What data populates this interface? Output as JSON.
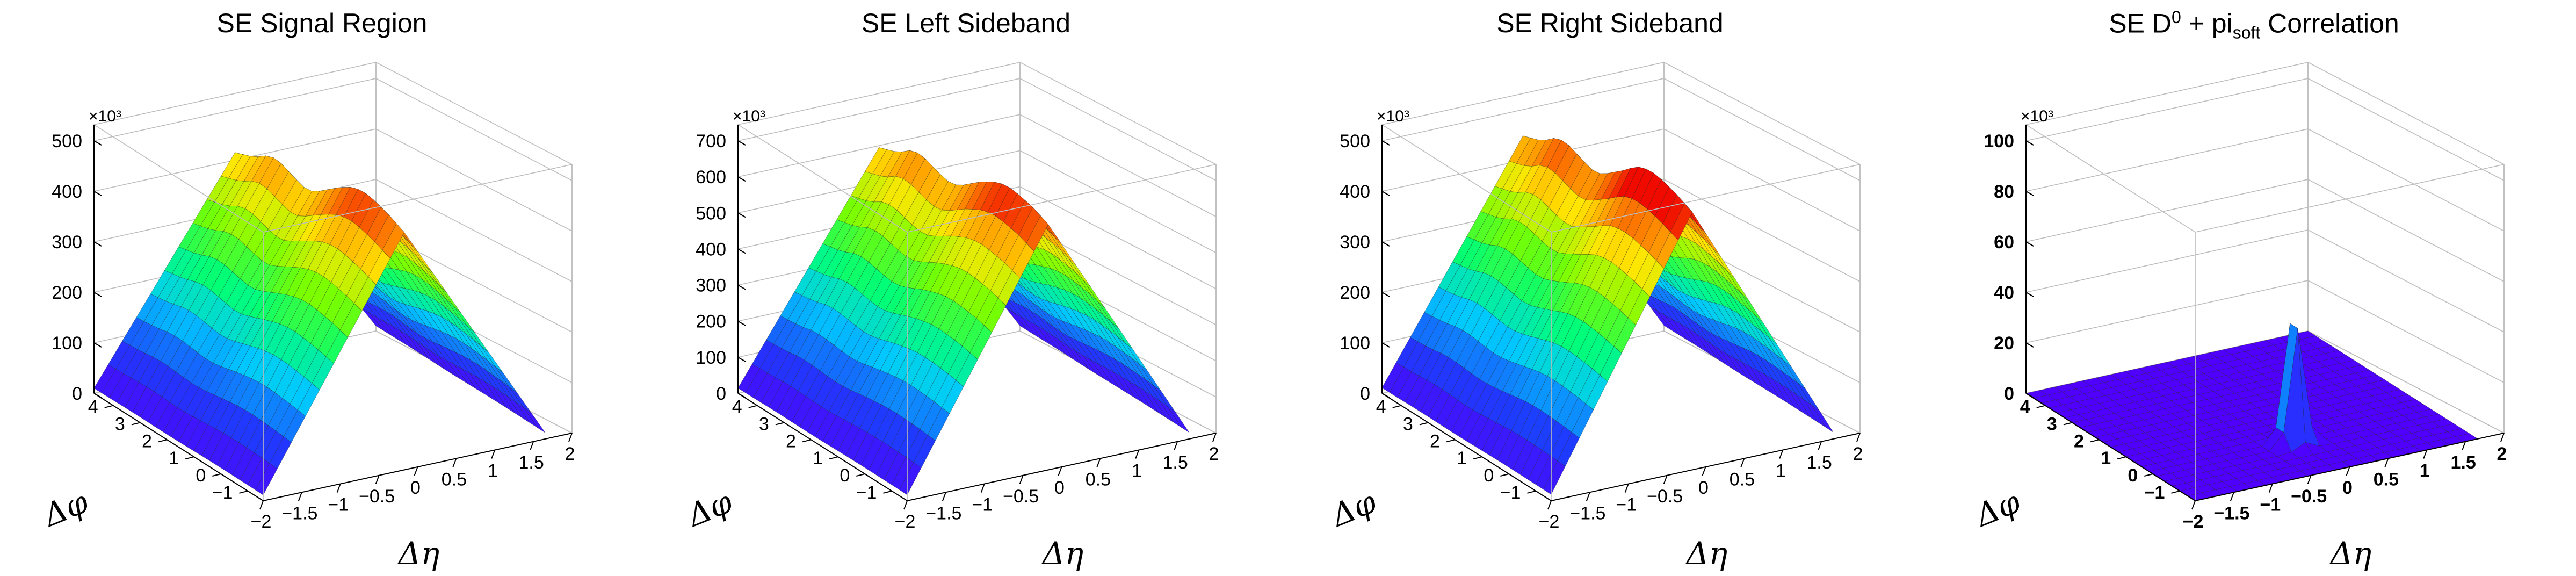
{
  "figure": {
    "panels": [
      {
        "id": "signal",
        "title": "SE Signal Region",
        "title_parts": null,
        "z_multiplier": "×10³",
        "x_label": "Δη",
        "y_label": "Δφ",
        "x_ticks": [
          "−2",
          "−1.5",
          "−1",
          "−0.5",
          "0",
          "0.5",
          "1",
          "1.5",
          "2"
        ],
        "y_ticks": [
          "−1",
          "0",
          "1",
          "2",
          "3",
          "4"
        ],
        "z_ticks": [
          "0",
          "100",
          "200",
          "300",
          "400",
          "500"
        ],
        "bold_ticks": false
      },
      {
        "id": "left-sideband",
        "title": "SE Left Sideband",
        "title_parts": null,
        "z_multiplier": "×10³",
        "x_label": "Δη",
        "y_label": "Δφ",
        "x_ticks": [
          "−2",
          "−1.5",
          "−1",
          "−0.5",
          "0",
          "0.5",
          "1",
          "1.5",
          "2"
        ],
        "y_ticks": [
          "−1",
          "0",
          "1",
          "2",
          "3",
          "4"
        ],
        "z_ticks": [
          "0",
          "100",
          "200",
          "300",
          "400",
          "500",
          "600",
          "700"
        ],
        "bold_ticks": false
      },
      {
        "id": "right-sideband",
        "title": "SE Right Sideband",
        "title_parts": null,
        "z_multiplier": "×10³",
        "x_label": "Δη",
        "y_label": "Δφ",
        "x_ticks": [
          "−2",
          "−1.5",
          "−1",
          "−0.5",
          "0",
          "0.5",
          "1",
          "1.5",
          "2"
        ],
        "y_ticks": [
          "−1",
          "0",
          "1",
          "2",
          "3",
          "4"
        ],
        "z_ticks": [
          "0",
          "100",
          "200",
          "300",
          "400",
          "500"
        ],
        "bold_ticks": false
      },
      {
        "id": "d0-pisoft",
        "title": "SE D0 + pisoft Correlation",
        "title_parts": {
          "a": "SE D",
          "sup": "0",
          "b": " + pi",
          "sub": "soft",
          "c": " Correlation"
        },
        "z_multiplier": "×10³",
        "x_label": "Δη",
        "y_label": "Δφ",
        "x_ticks": [
          "−2",
          "−1.5",
          "−1",
          "−0.5",
          "0",
          "0.5",
          "1",
          "1.5",
          "2"
        ],
        "y_ticks": [
          "−1",
          "0",
          "1",
          "2",
          "3",
          "4"
        ],
        "z_ticks": [
          "0",
          "20",
          "40",
          "60",
          "80",
          "100"
        ],
        "bold_ticks": true
      }
    ]
  },
  "chart_data": [
    {
      "type": "surface",
      "title": "SE Signal Region",
      "xlabel": "Δη",
      "ylabel": "Δφ",
      "zlabel": "",
      "z_multiplier": 1000,
      "xlim": [
        -2,
        2
      ],
      "ylim": [
        -1.5708,
        4.7124
      ],
      "zlim": [
        0,
        500
      ],
      "grid": true,
      "colormap": "rainbow",
      "shape": "ridge along Δφ, triangular in Δη",
      "x": [
        -2,
        -1.6,
        -1.2,
        -0.8,
        -0.4,
        0,
        0.4,
        0.8,
        1.2,
        1.6,
        2
      ],
      "y_profile": {
        "dphi": [
          -1.5708,
          -1.0,
          -0.5,
          0,
          0.5,
          1.0,
          1.5708,
          2.0,
          2.5,
          3.1416,
          3.5,
          4.0,
          4.7124
        ],
        "z_at_deta0": [
          470,
          485,
          495,
          500,
          490,
          470,
          445,
          430,
          440,
          455,
          450,
          430,
          415
        ]
      },
      "z_peak": 500
    },
    {
      "type": "surface",
      "title": "SE Left Sideband",
      "xlabel": "Δη",
      "ylabel": "Δφ",
      "zlabel": "",
      "z_multiplier": 1000,
      "xlim": [
        -2,
        2
      ],
      "ylim": [
        -1.5708,
        4.7124
      ],
      "zlim": [
        0,
        700
      ],
      "grid": true,
      "colormap": "rainbow",
      "shape": "ridge along Δφ, triangular in Δη",
      "x": [
        -2,
        -1.6,
        -1.2,
        -0.8,
        -0.4,
        0,
        0.4,
        0.8,
        1.2,
        1.6,
        2
      ],
      "y_profile": {
        "dphi": [
          -1.5708,
          -1.0,
          -0.5,
          0,
          0.5,
          1.0,
          1.5708,
          2.0,
          2.5,
          3.1416,
          3.5,
          4.0,
          4.7124
        ],
        "z_at_deta0": [
          680,
          700,
          710,
          715,
          700,
          675,
          640,
          620,
          630,
          650,
          645,
          615,
          595
        ]
      },
      "z_peak": 715
    },
    {
      "type": "surface",
      "title": "SE Right Sideband",
      "xlabel": "Δη",
      "ylabel": "Δφ",
      "zlabel": "",
      "z_multiplier": 1000,
      "xlim": [
        -2,
        2
      ],
      "ylim": [
        -1.5708,
        4.7124
      ],
      "zlim": [
        0,
        500
      ],
      "grid": true,
      "colormap": "rainbow",
      "shape": "ridge along Δφ, triangular in Δη",
      "x": [
        -2,
        -1.6,
        -1.2,
        -0.8,
        -0.4,
        0,
        0.4,
        0.8,
        1.2,
        1.6,
        2
      ],
      "y_profile": {
        "dphi": [
          -1.5708,
          -1.0,
          -0.5,
          0,
          0.5,
          1.0,
          1.5708,
          2.0,
          2.5,
          3.1416,
          3.5,
          4.0,
          4.7124
        ],
        "z_at_deta0": [
          510,
          525,
          535,
          540,
          530,
          505,
          480,
          465,
          475,
          490,
          485,
          462,
          448
        ]
      },
      "z_peak": 540
    },
    {
      "type": "surface",
      "title": "SE D0 + pisoft Correlation",
      "xlabel": "Δη",
      "ylabel": "Δφ",
      "zlabel": "",
      "z_multiplier": 1000,
      "xlim": [
        -2,
        2
      ],
      "ylim": [
        -1.5708,
        4.7124
      ],
      "zlim": [
        0,
        100
      ],
      "grid": true,
      "colormap": "rainbow",
      "shape": "flat near zero with a narrow spike at (Δη=0, Δφ=0)",
      "spike": {
        "deta": 0,
        "dphi": 0,
        "z": 65
      },
      "baseline": 0
    }
  ]
}
